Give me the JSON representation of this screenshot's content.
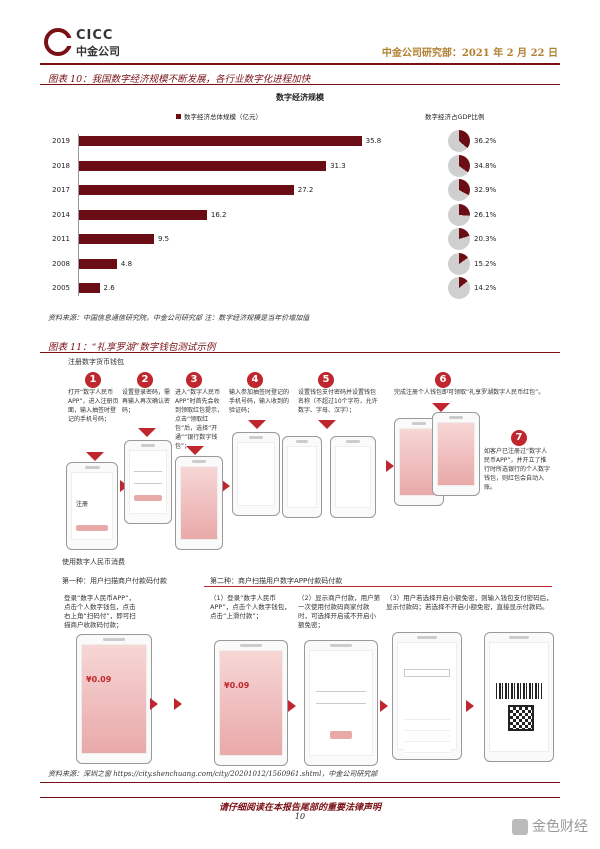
{
  "header": {
    "logo_latin": "CICC",
    "logo_cn": "中金公司",
    "right_text": "中金公司研究部：2021 年 2 月 22 日"
  },
  "figure10": {
    "title": "图表 10：我国数字经济规模不断发展，各行业数字化进程加快",
    "chart_title": "数字经济规模",
    "legend_bar": "数字经济总体规模（亿元）",
    "legend_pie": "数字经济占GDP比例",
    "source": "资料来源：中国信息通信研究院，中金公司研究部 注：数字经济规模是当年价增加值"
  },
  "chart_data": {
    "type": "bar",
    "orientation": "horizontal",
    "categories": [
      "2019",
      "2018",
      "2017",
      "2014",
      "2011",
      "2008",
      "2005"
    ],
    "values": [
      35.8,
      31.3,
      27.2,
      16.2,
      9.5,
      4.8,
      2.6
    ],
    "value_labels": [
      "35.8",
      "31.3",
      "27.2",
      "16.2",
      "9.5",
      "4.8",
      "2.6"
    ],
    "xlim": [
      0,
      38
    ],
    "bar_color": "#6b0d15",
    "pie_series": {
      "name": "数字经济占GDP比例",
      "values": [
        36.2,
        34.8,
        32.9,
        26.1,
        20.3,
        15.2,
        14.2
      ],
      "labels": [
        "36.2%",
        "34.8%",
        "32.9%",
        "26.1%",
        "20.3%",
        "15.2%",
        "14.2%"
      ],
      "fill_color": "#6b0d15",
      "rest_color": "#cfcfcf"
    }
  },
  "figure11": {
    "title": "图表 11：“礼享罗湖”数字钱包测试示例",
    "section_register": "注册数字货币钱包",
    "section_use": "使用数字人民币消费",
    "mode1_title": "第一种：用户扫描商户付款码付款",
    "mode2_title": "第二种：商户扫描用户数字APP付款码付款",
    "steps": [
      {
        "num": "1",
        "text": "打开“数字人民币APP”，进入注册页面，输入抽签时登记的手机号码；"
      },
      {
        "num": "2",
        "text": "设置登录密码，需再输入再次确认密码；"
      },
      {
        "num": "3",
        "text": "进入“数字人民币APP”时首先会收到领取红包提示，点击“领取红包”后，选择“开通”“银行数字钱包”；"
      },
      {
        "num": "4",
        "text": "输入参加抽签时登记的手机号码，输入收到的验证码；"
      },
      {
        "num": "5",
        "text": "设置钱包支付密码并设置钱包名称（不超过10个字符，允许数字、字母、汉字）；"
      },
      {
        "num": "6",
        "text": "完成注册个人钱包即可领取“礼享罗湖数字人民币红包”。"
      },
      {
        "num": "7",
        "text": "如客户已注册过“数字人民币APP”，并开立了推行时所选银行的个人数字钱包，则红包会自动入账。"
      }
    ],
    "mode1_desc": "登录“数字人民币APP”，点击个人数字钱包，点击右上角“扫码付”，即可扫描商户收款码付款；",
    "mode2_steps": [
      "（1）登录“数字人民币APP”，点击个人数字钱包，点击“上滑付款”；",
      "（2）显示商户付款，用户第一次使用付款码商家付款时，可选择开启或不开启小额免密；",
      "（3）用户若选择开启小额免密，则输入钱包支付密码后，显示付款码；若选择不开启小额免密，直接显示付款码。"
    ],
    "phone_amount": "¥0.09",
    "phone_reg_label": "注册",
    "source": "资料来源：深圳之窗 https://city.shenchuang.com/city/20201012/1560961.shtml，中金公司研究部"
  },
  "footer": {
    "disclaimer": "请仔细阅读在本报告尾部的重要法律声明",
    "page_number": "10",
    "watermark": "金色财经"
  },
  "colors": {
    "brand": "#7a1016",
    "accent_red": "#c0262d",
    "bar": "#6b0d15"
  }
}
